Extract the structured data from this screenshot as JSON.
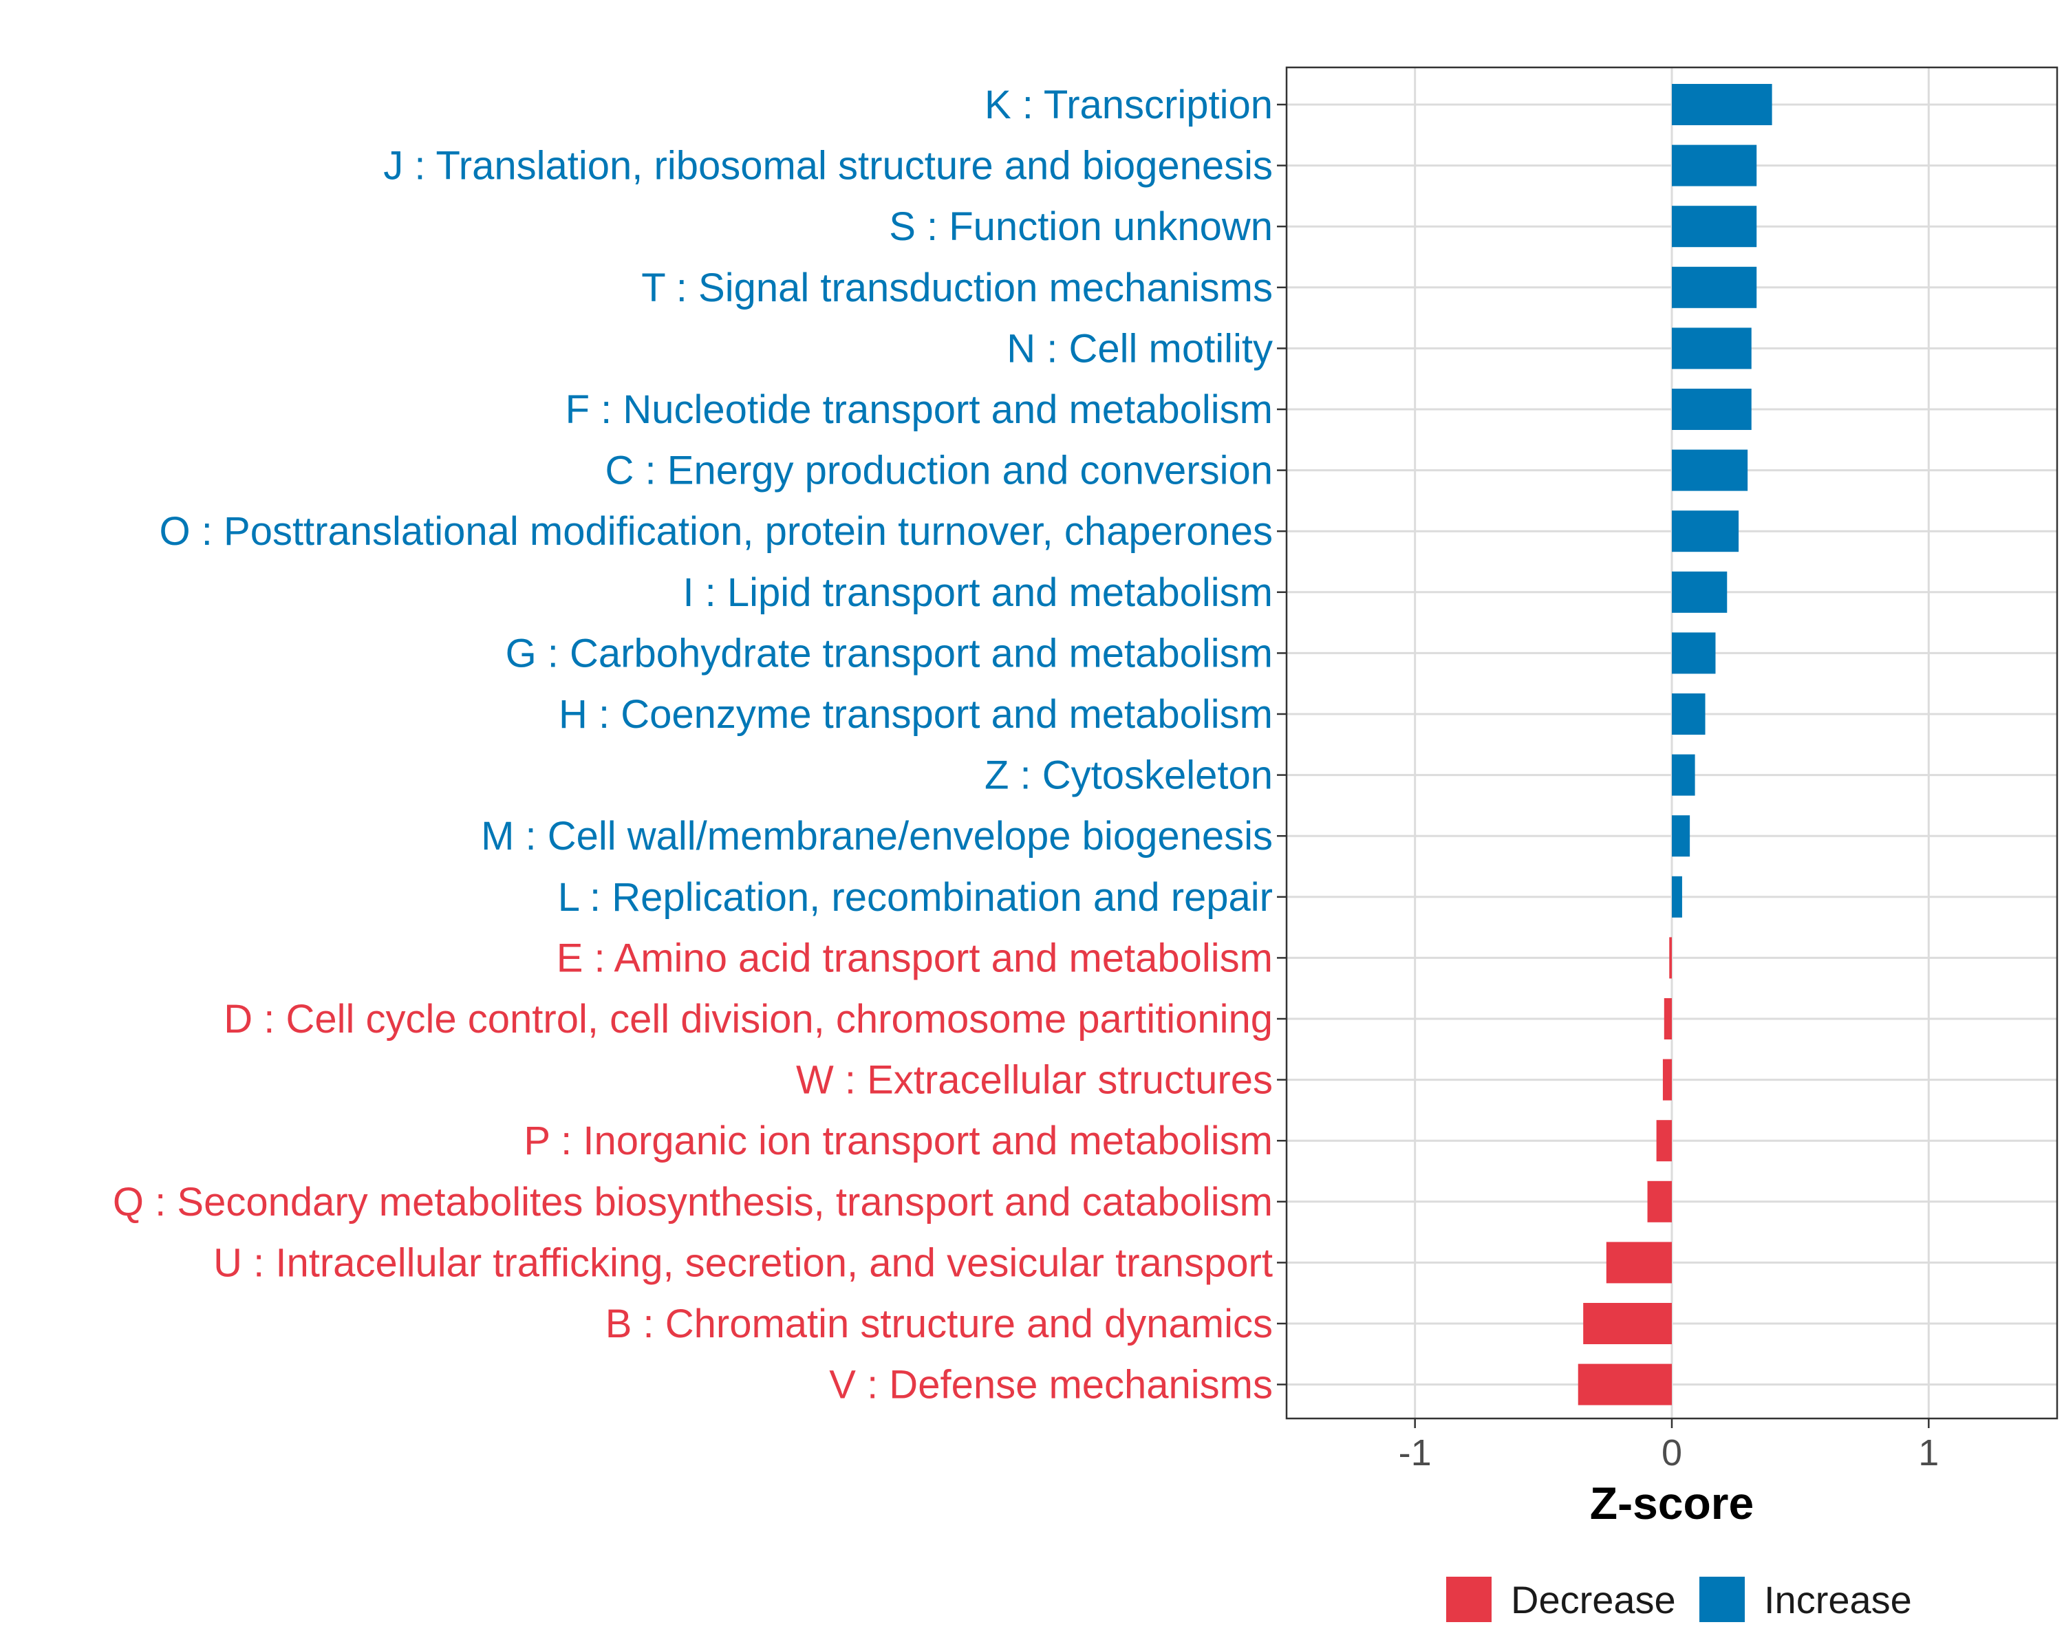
{
  "colors": {
    "decrease": "#E63946",
    "increase": "#0077B6",
    "grid": "#DCDCDC",
    "axis": "#333333"
  },
  "chart_data": {
    "type": "bar",
    "orientation": "horizontal",
    "xlabel": "Z-score",
    "xlim": [
      -1.5,
      1.5
    ],
    "xticks": [
      -1,
      0,
      1
    ],
    "xtick_labels": [
      "-1",
      "0",
      "1"
    ],
    "grid": true,
    "legend_position": "bottom",
    "legend": [
      {
        "key": "decrease",
        "label": "Decrease"
      },
      {
        "key": "increase",
        "label": "Increase"
      }
    ],
    "categories": [
      "K : Transcription",
      "J : Translation, ribosomal structure and biogenesis",
      "S : Function unknown",
      "T : Signal transduction mechanisms",
      "N : Cell motility",
      "F : Nucleotide transport and metabolism",
      "C : Energy production and conversion",
      "O : Posttranslational modification, protein turnover, chaperones",
      "I : Lipid transport and metabolism",
      "G : Carbohydrate transport and metabolism",
      "H : Coenzyme transport and metabolism",
      "Z : Cytoskeleton",
      "M : Cell wall/membrane/envelope biogenesis",
      "L : Replication, recombination and repair",
      "E : Amino acid transport and metabolism",
      "D : Cell cycle control, cell division, chromosome partitioning",
      "W : Extracellular structures",
      "P : Inorganic ion transport and metabolism",
      "Q : Secondary metabolites biosynthesis, transport and catabolism",
      "U : Intracellular trafficking, secretion, and vesicular transport",
      "B : Chromatin structure and dynamics",
      "V : Defense mechanisms"
    ],
    "values": [
      0.39,
      0.33,
      0.33,
      0.33,
      0.31,
      0.31,
      0.295,
      0.26,
      0.215,
      0.17,
      0.13,
      0.09,
      0.07,
      0.04,
      -0.01,
      -0.03,
      -0.035,
      -0.06,
      -0.095,
      -0.255,
      -0.345,
      -0.365
    ]
  }
}
